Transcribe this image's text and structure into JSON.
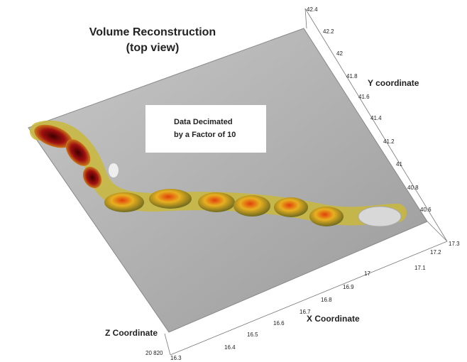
{
  "title": [
    "Volume Reconstruction",
    "(top view)"
  ],
  "annotation": [
    "Data Decimated",
    "by a Factor of 10"
  ],
  "axes": {
    "y": {
      "label": "Y coordinate",
      "ticks": [
        "42.4",
        "42.2",
        "42",
        "41.8",
        "41.6",
        "41.4",
        "41.2",
        "41",
        "40.8",
        "40.6"
      ]
    },
    "x": {
      "label": "X Coordinate",
      "ticks": [
        "17.3",
        "17.2",
        "17.1",
        "17",
        "16.9",
        "16.8",
        "16.7",
        "16.6",
        "16.5",
        "16.4",
        "16.3"
      ]
    },
    "z": {
      "label": "Z Coordinate",
      "ticks": [
        "20 820"
      ]
    }
  }
}
